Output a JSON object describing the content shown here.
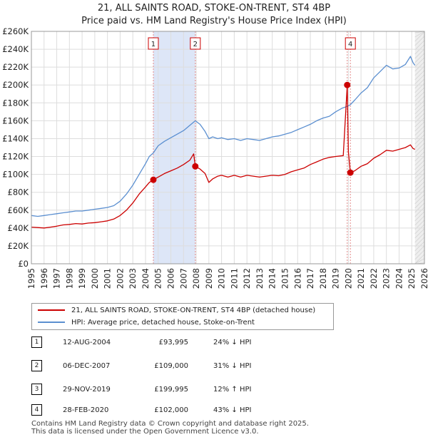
{
  "title_line1": "21, ALL SAINTS ROAD, STOKE-ON-TRENT, ST4 4BP",
  "title_line2": "Price paid vs. HM Land Registry's House Price Index (HPI)",
  "colors": {
    "property": "#cc0000",
    "hpi": "#5b8fd0",
    "shade": "#dde6f7",
    "marker_line": "#e38a8a",
    "grid": "#dddddd"
  },
  "chart_data": {
    "type": "line",
    "title": "21, ALL SAINTS ROAD, STOKE-ON-TRENT, ST4 4BP — Price paid vs. HM Land Registry's House Price Index (HPI)",
    "xlim": [
      1995,
      2026
    ],
    "ylim": [
      0,
      260000
    ],
    "y_ticks": [
      0,
      20000,
      40000,
      60000,
      80000,
      100000,
      120000,
      140000,
      160000,
      180000,
      200000,
      220000,
      240000,
      260000
    ],
    "y_tick_labels": [
      "£0",
      "£20K",
      "£40K",
      "£60K",
      "£80K",
      "£100K",
      "£120K",
      "£140K",
      "£160K",
      "£180K",
      "£200K",
      "£220K",
      "£240K",
      "£260K"
    ],
    "x_ticks": [
      1995,
      1996,
      1997,
      1998,
      1999,
      2000,
      2001,
      2002,
      2003,
      2004,
      2005,
      2006,
      2007,
      2008,
      2009,
      2010,
      2011,
      2012,
      2013,
      2014,
      2015,
      2016,
      2017,
      2018,
      2019,
      2020,
      2021,
      2022,
      2023,
      2024,
      2025,
      2026
    ],
    "x_tick_labels": [
      "1995",
      "1996",
      "1997",
      "1998",
      "1999",
      "2000",
      "2001",
      "2002",
      "2003",
      "2004",
      "2005",
      "2006",
      "2007",
      "2008",
      "2009",
      "2010",
      "2011",
      "2012",
      "2013",
      "2014",
      "2015",
      "2016",
      "2017",
      "2018",
      "2019",
      "2020",
      "2021",
      "2022",
      "2023",
      "2024",
      "2025",
      "2026"
    ],
    "shaded_period": [
      2004.62,
      2007.93
    ],
    "data_end": 2025.25,
    "series": [
      {
        "name": "21, ALL SAINTS ROAD, STOKE-ON-TRENT, ST4 4BP (detached house)",
        "x": [
          1995.0,
          1995.5,
          1996.0,
          1996.5,
          1997.0,
          1997.5,
          1998.0,
          1998.5,
          1999.0,
          1999.5,
          2000.0,
          2000.5,
          2001.0,
          2001.5,
          2002.0,
          2002.5,
          2003.0,
          2003.5,
          2004.0,
          2004.3,
          2004.62,
          2004.62,
          2005.0,
          2005.5,
          2006.0,
          2006.5,
          2007.0,
          2007.5,
          2007.8,
          2007.93,
          2007.93,
          2008.3,
          2008.7,
          2009.0,
          2009.3,
          2009.7,
          2010.0,
          2010.5,
          2011.0,
          2011.5,
          2012.0,
          2012.5,
          2013.0,
          2013.5,
          2014.0,
          2014.5,
          2015.0,
          2015.5,
          2016.0,
          2016.5,
          2017.0,
          2017.5,
          2018.0,
          2018.5,
          2019.0,
          2019.6,
          2019.91,
          2019.91,
          2020.0,
          2020.16,
          2020.16,
          2020.5,
          2021.0,
          2021.5,
          2022.0,
          2022.5,
          2023.0,
          2023.5,
          2024.0,
          2024.5,
          2024.9,
          2025.1,
          2025.25
        ],
        "values": [
          41000,
          40500,
          40000,
          41000,
          42000,
          43500,
          44000,
          45000,
          44500,
          45500,
          46000,
          47000,
          48000,
          50000,
          54000,
          60000,
          68000,
          78000,
          86000,
          91000,
          93995,
          93995,
          97000,
          101000,
          104000,
          107000,
          111000,
          116000,
          123000,
          109000,
          109000,
          106000,
          101000,
          91000,
          95000,
          98000,
          99000,
          97000,
          99000,
          97000,
          99000,
          98000,
          97000,
          98000,
          99000,
          98500,
          100000,
          103000,
          105000,
          107000,
          111000,
          114000,
          117000,
          119000,
          120000,
          121000,
          199995,
          199995,
          125000,
          102000,
          102000,
          104000,
          109000,
          112000,
          118000,
          122000,
          127000,
          126000,
          128000,
          130000,
          133000,
          129000,
          128000
        ]
      },
      {
        "name": "HPI: Average price, detached house, Stoke-on-Trent",
        "x": [
          1995.0,
          1995.5,
          1996.0,
          1996.5,
          1997.0,
          1997.5,
          1998.0,
          1998.5,
          1999.0,
          1999.5,
          2000.0,
          2000.5,
          2001.0,
          2001.5,
          2002.0,
          2002.5,
          2003.0,
          2003.5,
          2004.0,
          2004.3,
          2004.62,
          2005.0,
          2005.5,
          2006.0,
          2006.5,
          2007.0,
          2007.5,
          2007.93,
          2008.3,
          2008.7,
          2009.0,
          2009.3,
          2009.7,
          2010.0,
          2010.5,
          2011.0,
          2011.5,
          2012.0,
          2012.5,
          2013.0,
          2013.5,
          2014.0,
          2014.5,
          2015.0,
          2015.5,
          2016.0,
          2016.5,
          2017.0,
          2017.5,
          2018.0,
          2018.5,
          2019.0,
          2019.5,
          2019.91,
          2020.16,
          2020.5,
          2021.0,
          2021.5,
          2022.0,
          2022.5,
          2023.0,
          2023.5,
          2024.0,
          2024.5,
          2024.9,
          2025.1,
          2025.25
        ],
        "values": [
          54000,
          53000,
          54000,
          55000,
          56000,
          57000,
          58000,
          59000,
          59000,
          60000,
          61000,
          62000,
          63000,
          65000,
          70000,
          78000,
          88000,
          100000,
          112000,
          120000,
          124000,
          132000,
          137000,
          141000,
          145000,
          149000,
          155000,
          160000,
          156000,
          148000,
          140000,
          142000,
          140000,
          141000,
          139000,
          140000,
          138000,
          140000,
          139000,
          138000,
          140000,
          142000,
          143000,
          145000,
          147000,
          150000,
          153000,
          156000,
          160000,
          163000,
          165000,
          170000,
          174000,
          176000,
          178000,
          183000,
          191000,
          197000,
          208000,
          215000,
          222000,
          218000,
          219000,
          223000,
          232000,
          225000,
          222000
        ]
      }
    ],
    "sale_markers": [
      {
        "label": "1",
        "x": 2004.62,
        "y": 93995
      },
      {
        "label": "2",
        "x": 2007.93,
        "y": 109000
      },
      {
        "label": "3",
        "x": 2019.91,
        "y": 199995
      },
      {
        "label": "4",
        "x": 2020.16,
        "y": 102000
      }
    ],
    "marker_boxes": [
      {
        "label": "1",
        "x": 2004.62
      },
      {
        "label": "2",
        "x": 2007.93
      },
      {
        "label": "4",
        "x": 2020.16
      }
    ]
  },
  "legend": {
    "property_label": "21, ALL SAINTS ROAD, STOKE-ON-TRENT, ST4 4BP (detached house)",
    "hpi_label": "HPI: Average price, detached house, Stoke-on-Trent"
  },
  "sales": [
    {
      "num": "1",
      "date": "12-AUG-2004",
      "price": "£93,995",
      "hpi": "24% ↓ HPI"
    },
    {
      "num": "2",
      "date": "06-DEC-2007",
      "price": "£109,000",
      "hpi": "31% ↓ HPI"
    },
    {
      "num": "3",
      "date": "29-NOV-2019",
      "price": "£199,995",
      "hpi": "12% ↑ HPI"
    },
    {
      "num": "4",
      "date": "28-FEB-2020",
      "price": "£102,000",
      "hpi": "43% ↓ HPI"
    }
  ],
  "footer": {
    "line1": "Contains HM Land Registry data © Crown copyright and database right 2025.",
    "line2": "This data is licensed under the Open Government Licence v3.0."
  }
}
